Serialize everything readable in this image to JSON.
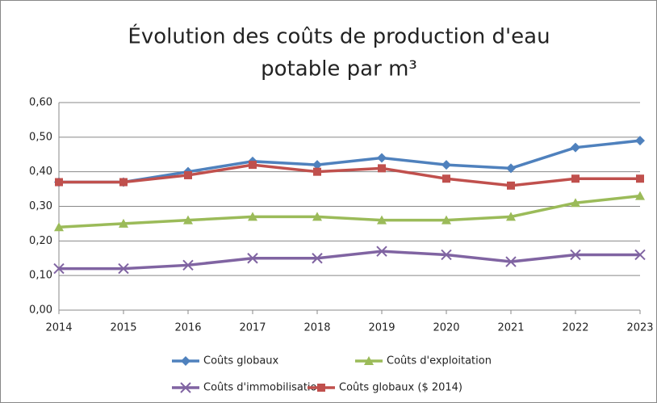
{
  "chart_data": {
    "type": "line",
    "title": [
      "Évolution des coûts de production d'eau",
      "potable par m³"
    ],
    "categories": [
      "2014",
      "2015",
      "2016",
      "2017",
      "2018",
      "2019",
      "2020",
      "2021",
      "2022",
      "2023"
    ],
    "series": [
      {
        "name": "Coûts globaux",
        "color": "#4f81bd",
        "marker": "diamond",
        "values": [
          0.37,
          0.37,
          0.4,
          0.43,
          0.42,
          0.44,
          0.42,
          0.41,
          0.47,
          0.49
        ]
      },
      {
        "name": "Coûts d'exploitation",
        "color": "#9bbb59",
        "marker": "triangle",
        "values": [
          0.24,
          0.25,
          0.26,
          0.27,
          0.27,
          0.26,
          0.26,
          0.27,
          0.31,
          0.33
        ]
      },
      {
        "name": "Coûts d'immobilisation",
        "color": "#8064a2",
        "marker": "x",
        "values": [
          0.12,
          0.12,
          0.13,
          0.15,
          0.15,
          0.17,
          0.16,
          0.14,
          0.16,
          0.16
        ]
      },
      {
        "name": "Coûts globaux ($ 2014)",
        "color": "#c0504d",
        "marker": "square",
        "values": [
          0.37,
          0.37,
          0.39,
          0.42,
          0.4,
          0.41,
          0.38,
          0.36,
          0.38,
          0.38
        ]
      }
    ],
    "ylim": [
      0,
      0.6
    ],
    "yticks": [
      {
        "value": 0,
        "label": "0,00"
      },
      {
        "value": 0.1,
        "label": "0,10"
      },
      {
        "value": 0.2,
        "label": "0,20"
      },
      {
        "value": 0.3,
        "label": "0,30"
      },
      {
        "value": 0.4,
        "label": "0,40"
      },
      {
        "value": 0.5,
        "label": "0,50"
      },
      {
        "value": 0.6,
        "label": "0,60"
      }
    ],
    "grid": true,
    "legend": "bottom"
  }
}
